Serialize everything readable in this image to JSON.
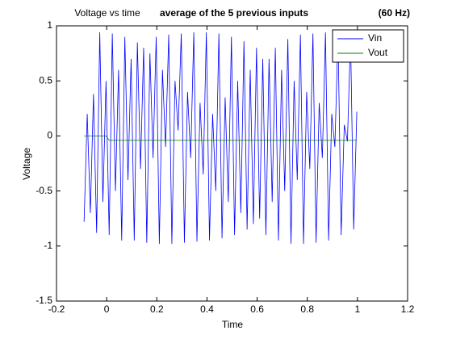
{
  "chart_data": {
    "type": "line",
    "title": "Voltage vs time",
    "subtitle": "average of the 5 previous inputs",
    "annotation": "(60 Hz)",
    "xlabel": "Time",
    "ylabel": "Voltage",
    "x": [
      -0.09,
      -0.0775,
      -0.065,
      -0.0525,
      -0.04,
      -0.0275,
      -0.015,
      -0.0025,
      0.01,
      0.0225,
      0.035,
      0.0475,
      0.06,
      0.0725,
      0.085,
      0.0975,
      0.11,
      0.1225,
      0.135,
      0.1475,
      0.16,
      0.1725,
      0.185,
      0.1975,
      0.21,
      0.2225,
      0.235,
      0.2475,
      0.26,
      0.2725,
      0.285,
      0.2975,
      0.31,
      0.3225,
      0.335,
      0.3475,
      0.36,
      0.3725,
      0.385,
      0.3975,
      0.41,
      0.4225,
      0.435,
      0.4475,
      0.46,
      0.4725,
      0.485,
      0.4975,
      0.51,
      0.5225,
      0.535,
      0.5475,
      0.56,
      0.5725,
      0.585,
      0.5975,
      0.61,
      0.6225,
      0.635,
      0.6475,
      0.66,
      0.6725,
      0.685,
      0.6975,
      0.71,
      0.7225,
      0.735,
      0.7475,
      0.76,
      0.7725,
      0.785,
      0.7975,
      0.81,
      0.8225,
      0.835,
      0.8475,
      0.86,
      0.8725,
      0.885,
      0.8975,
      0.91,
      0.9225,
      0.935,
      0.9475,
      0.96,
      0.9725,
      0.985,
      0.9975
    ],
    "series": [
      {
        "name": "Vin",
        "color": "#0000ff",
        "values": [
          -0.78,
          0.2,
          -0.7,
          0.38,
          -0.88,
          0.94,
          -0.6,
          0.5,
          -0.9,
          0.93,
          -0.5,
          0.6,
          -0.95,
          0.9,
          -0.4,
          0.7,
          -0.95,
          0.85,
          -0.3,
          0.8,
          -0.97,
          0.75,
          -0.2,
          0.9,
          -0.98,
          0.6,
          -0.1,
          0.92,
          -0.98,
          0.5,
          0.05,
          0.93,
          -0.97,
          0.4,
          -0.2,
          0.94,
          -0.96,
          0.3,
          -0.35,
          0.94,
          -0.95,
          0.2,
          -0.5,
          0.93,
          -0.93,
          0.35,
          -0.6,
          0.9,
          -0.9,
          0.5,
          -0.7,
          0.86,
          -0.85,
          0.6,
          -0.8,
          0.8,
          -0.75,
          0.7,
          -0.9,
          0.7,
          -0.6,
          0.8,
          -0.95,
          0.6,
          -0.5,
          0.88,
          -0.98,
          0.5,
          -0.4,
          0.92,
          -0.98,
          0.4,
          -0.3,
          0.93,
          -0.97,
          0.3,
          -0.2,
          0.94,
          -0.95,
          0.2,
          -0.1,
          0.93,
          -0.9,
          0.1,
          -0.05,
          0.9,
          -0.85,
          0.22
        ]
      },
      {
        "name": "Vout",
        "color": "#008000",
        "values": [
          0,
          0,
          0,
          0,
          0,
          0,
          0,
          0,
          -0.04,
          -0.04,
          -0.04,
          -0.04,
          -0.04,
          -0.04,
          -0.04,
          -0.04,
          -0.04,
          -0.04,
          -0.04,
          -0.04,
          -0.04,
          -0.04,
          -0.04,
          -0.04,
          -0.04,
          -0.04,
          -0.04,
          -0.04,
          -0.04,
          -0.04,
          -0.04,
          -0.04,
          -0.04,
          -0.04,
          -0.04,
          -0.04,
          -0.04,
          -0.04,
          -0.04,
          -0.04,
          -0.04,
          -0.04,
          -0.04,
          -0.04,
          -0.04,
          -0.04,
          -0.04,
          -0.04,
          -0.04,
          -0.04,
          -0.04,
          -0.04,
          -0.04,
          -0.04,
          -0.04,
          -0.04,
          -0.04,
          -0.04,
          -0.04,
          -0.04,
          -0.04,
          -0.04,
          -0.04,
          -0.04,
          -0.04,
          -0.04,
          -0.04,
          -0.04,
          -0.04,
          -0.04,
          -0.04,
          -0.04,
          -0.04,
          -0.04,
          -0.04,
          -0.04,
          -0.04,
          -0.04,
          -0.04,
          -0.04,
          -0.04,
          -0.04,
          -0.04,
          -0.04,
          -0.04,
          -0.04,
          -0.04,
          -0.04
        ]
      }
    ],
    "xlim": [
      -0.2,
      1.2
    ],
    "xticks": [
      -0.2,
      0,
      0.2,
      0.4,
      0.6,
      0.8,
      1,
      1.2
    ],
    "ylim": [
      -1.5,
      1
    ],
    "yticks": [
      -1.5,
      -1,
      -0.5,
      0,
      0.5,
      1
    ],
    "grid": false,
    "legend": "northeast"
  }
}
